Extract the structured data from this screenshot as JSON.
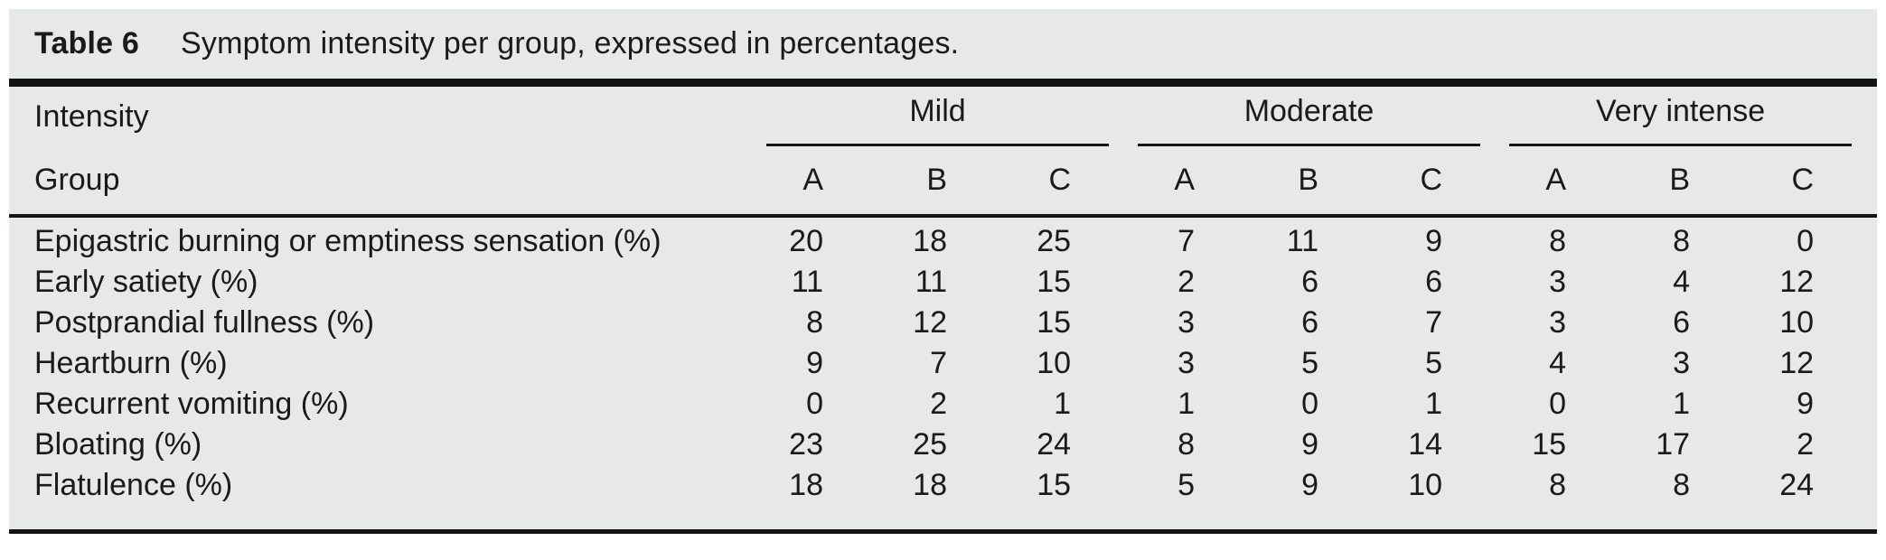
{
  "title": {
    "label": "Table 6",
    "caption": "Symptom intensity per group, expressed in percentages."
  },
  "header": {
    "row1_label": "Intensity",
    "row2_label": "Group",
    "groups": [
      "Mild",
      "Moderate",
      "Very intense"
    ],
    "subcolumns": [
      "A",
      "B",
      "C"
    ]
  },
  "rows": [
    {
      "label": "Epigastric burning or emptiness sensation (%)",
      "values": [
        20,
        18,
        25,
        7,
        11,
        9,
        8,
        8,
        0
      ]
    },
    {
      "label": "Early satiety (%)",
      "values": [
        11,
        11,
        15,
        2,
        6,
        6,
        3,
        4,
        12
      ]
    },
    {
      "label": "Postprandial fullness (%)",
      "values": [
        8,
        12,
        15,
        3,
        6,
        7,
        3,
        6,
        10
      ]
    },
    {
      "label": "Heartburn (%)",
      "values": [
        9,
        7,
        10,
        3,
        5,
        5,
        4,
        3,
        12
      ]
    },
    {
      "label": "Recurrent vomiting (%)",
      "values": [
        0,
        2,
        1,
        1,
        0,
        1,
        0,
        1,
        9
      ]
    },
    {
      "label": "Bloating (%)",
      "values": [
        23,
        25,
        24,
        8,
        9,
        14,
        15,
        17,
        2
      ]
    },
    {
      "label": "Flatulence (%)",
      "values": [
        18,
        18,
        15,
        5,
        9,
        10,
        8,
        8,
        24
      ]
    }
  ],
  "colors": {
    "panel_bg": "#e7e8e8",
    "text": "#1a1a1a",
    "rule": "#141414"
  }
}
